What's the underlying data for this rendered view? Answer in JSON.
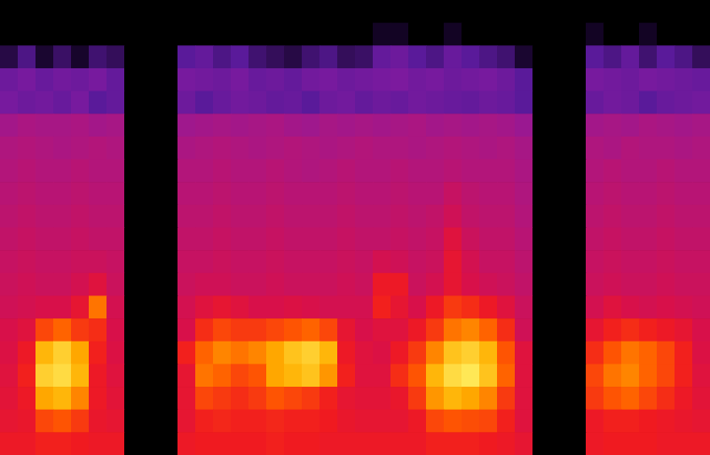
{
  "chart_data": {
    "type": "heatmap",
    "tick_labels": false,
    "color_range": [
      0,
      100
    ],
    "cells": [
      [
        0,
        0,
        0,
        0,
        0,
        0,
        0,
        0,
        0,
        0,
        0,
        0,
        0,
        0,
        0,
        0,
        0,
        0,
        0,
        0,
        0,
        0,
        0,
        0,
        0,
        0,
        0,
        0,
        0,
        0,
        0,
        0,
        0,
        0,
        0,
        0,
        0,
        0,
        0,
        0
      ],
      [
        0,
        0,
        0,
        0,
        0,
        0,
        0,
        0,
        0,
        0,
        0,
        0,
        0,
        0,
        0,
        0,
        0,
        0,
        0,
        0,
        0,
        15,
        15,
        0,
        0,
        15,
        0,
        0,
        0,
        0,
        0,
        0,
        0,
        15,
        0,
        0,
        15,
        0,
        0,
        0
      ],
      [
        22,
        28,
        20,
        25,
        18,
        26,
        24,
        0,
        0,
        0,
        30,
        32,
        28,
        30,
        26,
        24,
        22,
        26,
        28,
        24,
        25,
        32,
        34,
        30,
        28,
        33,
        30,
        28,
        26,
        20,
        0,
        0,
        0,
        30,
        28,
        32,
        26,
        30,
        28,
        24
      ],
      [
        34,
        36,
        33,
        35,
        34,
        36,
        32,
        0,
        0,
        0,
        36,
        35,
        34,
        36,
        33,
        34,
        32,
        35,
        36,
        34,
        35,
        36,
        37,
        35,
        36,
        34,
        35,
        36,
        34,
        30,
        0,
        0,
        0,
        36,
        35,
        34,
        36,
        35,
        34,
        33
      ],
      [
        36,
        34,
        35,
        33,
        36,
        30,
        32,
        0,
        0,
        0,
        34,
        30,
        33,
        35,
        34,
        32,
        33,
        30,
        34,
        35,
        32,
        34,
        33,
        35,
        34,
        33,
        32,
        34,
        33,
        30,
        0,
        0,
        0,
        33,
        35,
        34,
        30,
        33,
        34,
        35
      ],
      [
        46,
        48,
        47,
        47,
        48,
        46,
        47,
        0,
        0,
        0,
        45,
        46,
        47,
        46,
        47,
        48,
        46,
        45,
        47,
        46,
        47,
        46,
        47,
        48,
        46,
        47,
        46,
        47,
        46,
        44,
        0,
        0,
        0,
        46,
        47,
        46,
        48,
        47,
        46,
        47
      ],
      [
        49,
        50,
        49,
        48,
        49,
        50,
        49,
        0,
        0,
        0,
        48,
        49,
        50,
        49,
        48,
        49,
        50,
        49,
        48,
        49,
        50,
        49,
        49,
        48,
        49,
        50,
        49,
        48,
        49,
        47,
        0,
        0,
        0,
        49,
        48,
        50,
        49,
        49,
        48,
        49
      ],
      [
        50,
        51,
        50,
        50,
        51,
        50,
        50,
        0,
        0,
        0,
        50,
        50,
        51,
        50,
        50,
        51,
        50,
        49,
        50,
        51,
        50,
        50,
        51,
        50,
        50,
        51,
        50,
        50,
        50,
        48,
        0,
        0,
        0,
        50,
        51,
        50,
        50,
        51,
        50,
        50
      ],
      [
        51,
        52,
        51,
        51,
        52,
        51,
        51,
        0,
        0,
        0,
        51,
        51,
        52,
        51,
        51,
        52,
        51,
        51,
        51,
        52,
        51,
        51,
        52,
        51,
        51,
        54,
        52,
        51,
        51,
        49,
        0,
        0,
        0,
        51,
        52,
        51,
        51,
        52,
        51,
        51
      ],
      [
        52,
        53,
        52,
        52,
        53,
        52,
        52,
        0,
        0,
        0,
        52,
        52,
        53,
        52,
        52,
        53,
        52,
        52,
        52,
        53,
        52,
        52,
        53,
        52,
        53,
        56,
        53,
        52,
        52,
        50,
        0,
        0,
        0,
        52,
        53,
        52,
        52,
        53,
        52,
        52
      ],
      [
        53,
        54,
        53,
        53,
        54,
        53,
        53,
        0,
        0,
        0,
        53,
        53,
        54,
        53,
        53,
        54,
        53,
        53,
        53,
        54,
        53,
        53,
        54,
        53,
        54,
        60,
        55,
        53,
        53,
        51,
        0,
        0,
        0,
        53,
        54,
        53,
        53,
        54,
        53,
        53
      ],
      [
        54,
        55,
        54,
        54,
        55,
        55,
        54,
        0,
        0,
        0,
        54,
        54,
        55,
        54,
        54,
        55,
        54,
        54,
        54,
        55,
        54,
        57,
        56,
        54,
        55,
        62,
        57,
        54,
        54,
        52,
        0,
        0,
        0,
        54,
        55,
        54,
        54,
        55,
        54,
        54
      ],
      [
        55,
        56,
        55,
        55,
        57,
        60,
        55,
        0,
        0,
        0,
        55,
        56,
        56,
        55,
        55,
        56,
        55,
        55,
        55,
        56,
        55,
        64,
        64,
        55,
        57,
        62,
        58,
        56,
        55,
        53,
        0,
        0,
        0,
        55,
        56,
        55,
        55,
        56,
        55,
        55
      ],
      [
        56,
        57,
        58,
        58,
        62,
        78,
        57,
        0,
        0,
        0,
        57,
        60,
        62,
        60,
        58,
        58,
        59,
        58,
        57,
        57,
        57,
        66,
        62,
        58,
        64,
        70,
        68,
        64,
        60,
        55,
        0,
        0,
        0,
        57,
        60,
        58,
        57,
        58,
        57,
        56
      ],
      [
        58,
        60,
        72,
        76,
        70,
        68,
        58,
        0,
        0,
        0,
        58,
        68,
        72,
        70,
        70,
        72,
        74,
        76,
        72,
        62,
        58,
        60,
        60,
        64,
        70,
        78,
        80,
        76,
        68,
        56,
        0,
        0,
        0,
        62,
        66,
        68,
        66,
        64,
        62,
        58
      ],
      [
        59,
        64,
        86,
        90,
        84,
        66,
        59,
        0,
        0,
        0,
        66,
        76,
        80,
        78,
        80,
        84,
        88,
        90,
        86,
        64,
        60,
        59,
        64,
        70,
        80,
        88,
        90,
        86,
        74,
        60,
        0,
        0,
        0,
        68,
        74,
        78,
        76,
        72,
        66,
        59
      ],
      [
        60,
        66,
        90,
        92,
        86,
        64,
        60,
        0,
        0,
        0,
        62,
        78,
        76,
        72,
        74,
        84,
        86,
        88,
        82,
        66,
        60,
        60,
        68,
        74,
        86,
        92,
        94,
        88,
        76,
        60,
        0,
        0,
        0,
        72,
        78,
        80,
        76,
        72,
        66,
        60
      ],
      [
        61,
        64,
        84,
        86,
        80,
        64,
        61,
        0,
        0,
        0,
        62,
        72,
        70,
        68,
        70,
        74,
        72,
        70,
        66,
        62,
        61,
        61,
        63,
        70,
        82,
        86,
        84,
        80,
        70,
        60,
        0,
        0,
        0,
        70,
        74,
        76,
        72,
        68,
        64,
        61
      ],
      [
        62,
        63,
        72,
        74,
        70,
        63,
        62,
        0,
        0,
        0,
        62,
        66,
        67,
        66,
        66,
        67,
        66,
        66,
        65,
        63,
        62,
        62,
        62,
        64,
        72,
        74,
        73,
        72,
        66,
        60,
        0,
        0,
        0,
        64,
        66,
        66,
        65,
        64,
        63,
        62
      ],
      [
        64,
        64,
        66,
        66,
        65,
        64,
        64,
        0,
        0,
        0,
        64,
        65,
        65,
        65,
        65,
        66,
        65,
        65,
        64,
        64,
        64,
        64,
        64,
        64,
        66,
        66,
        66,
        65,
        64,
        62,
        0,
        0,
        0,
        64,
        65,
        65,
        65,
        64,
        64,
        64
      ]
    ]
  }
}
